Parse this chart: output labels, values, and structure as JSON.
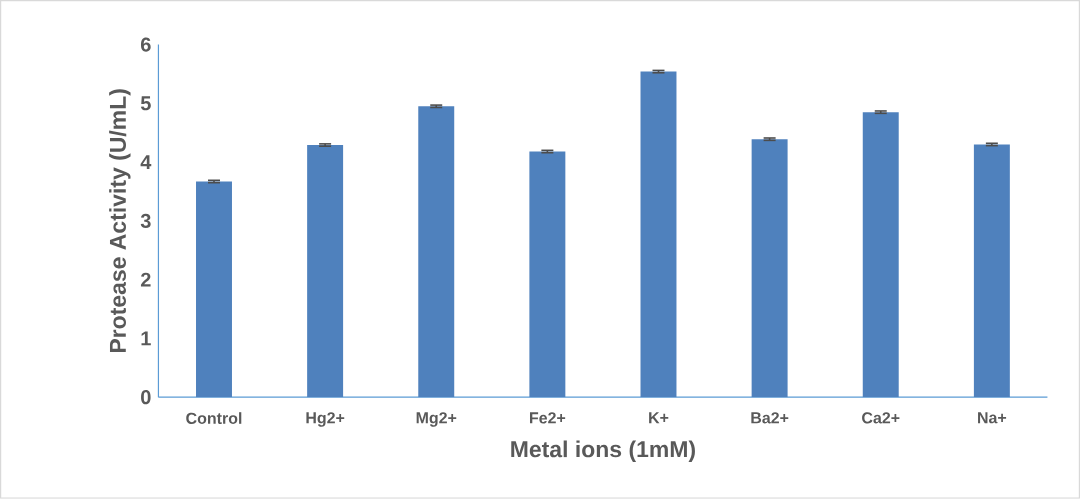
{
  "chart_data": {
    "type": "bar",
    "xlabel": "Metal ions (1mM)",
    "ylabel": "Protease Activity (U/mL)",
    "categories": [
      "Control",
      "Hg2+",
      "Mg2+",
      "Fe2+",
      "K+",
      "Ba2+",
      "Ca2+",
      "Na+"
    ],
    "values": [
      3.67,
      4.29,
      4.95,
      4.18,
      5.54,
      4.39,
      4.85,
      4.3
    ],
    "errors": [
      0.02,
      0.02,
      0.02,
      0.02,
      0.02,
      0.02,
      0.02,
      0.02
    ],
    "color": "#4f81bd",
    "ylim": [
      0,
      6
    ],
    "yticks": [
      0,
      1,
      2,
      3,
      4,
      5,
      6
    ],
    "grid": false
  }
}
